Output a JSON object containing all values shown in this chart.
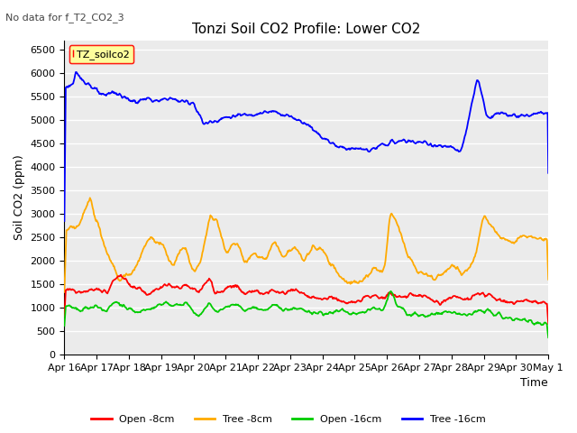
{
  "title": "Tonzi Soil CO2 Profile: Lower CO2",
  "subtitle": "No data for f_T2_CO2_3",
  "ylabel": "Soil CO2 (ppm)",
  "xlabel": "Time",
  "legend_label": "TZ_soilco2",
  "series_labels": [
    "Open -8cm",
    "Tree -8cm",
    "Open -16cm",
    "Tree -16cm"
  ],
  "series_colors": [
    "#ff0000",
    "#ffaa00",
    "#00cc00",
    "#0000ff"
  ],
  "ylim": [
    0,
    6700
  ],
  "yticks": [
    0,
    500,
    1000,
    1500,
    2000,
    2500,
    3000,
    3500,
    4000,
    4500,
    5000,
    5500,
    6000,
    6500
  ],
  "background_color": "#ffffff",
  "plot_bg_color": "#ebebeb",
  "grid_color": "#ffffff",
  "num_points": 720
}
